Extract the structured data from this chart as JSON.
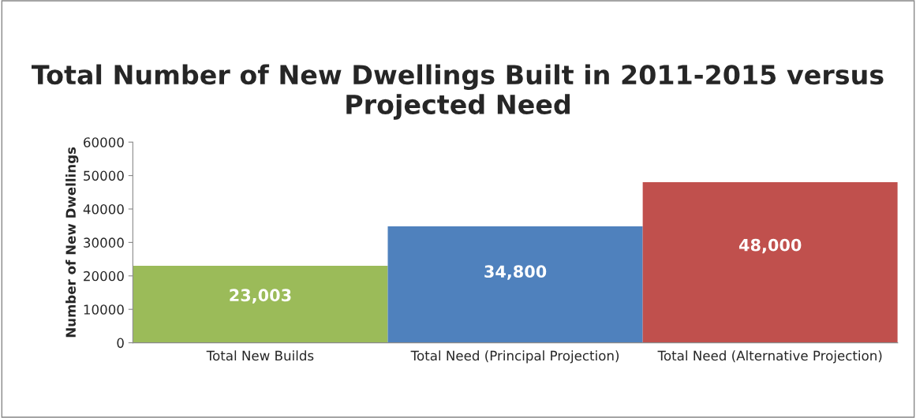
{
  "chart_data": {
    "type": "bar",
    "title": "Total Number of New Dwellings Built in 2011-2015 versus Projected Need",
    "ylabel": "Number of New Dwellings",
    "categories": [
      "Total New Builds",
      "Total Need (Principal Projection)",
      "Total Need (Alternative Projection)"
    ],
    "values": [
      23003,
      34800,
      48000
    ],
    "colors": [
      "#9bbb59",
      "#4f81bd",
      "#c0504d"
    ],
    "value_labels": [
      "23,003",
      "34,800",
      "48,000"
    ],
    "ylim": [
      0,
      60000
    ],
    "yticks": [
      0,
      10000,
      20000,
      30000,
      40000,
      50000,
      60000
    ],
    "grid": false,
    "legend": false
  }
}
